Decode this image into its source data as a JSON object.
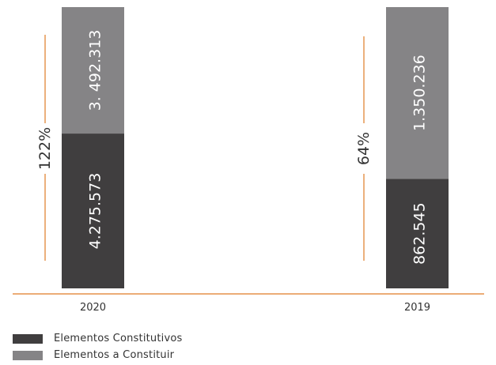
{
  "chart_data": {
    "type": "bar",
    "stacked": true,
    "orientation": "vertical",
    "categories": [
      "2020",
      "2019"
    ],
    "series": [
      {
        "name": "Elementos Constitutivos",
        "values": [
          4275573,
          862545
        ],
        "labels": [
          "4.275.573",
          "862.545"
        ],
        "color": "#403e3f"
      },
      {
        "name": "Elementos a Constituir",
        "values": [
          3492313,
          1350236
        ],
        "labels": [
          "3. 492.313",
          "1.350.236"
        ],
        "color": "#858486"
      }
    ],
    "ratio_labels": [
      "122%",
      "64%"
    ],
    "legend_position": "bottom-left",
    "grid": false,
    "colors": {
      "accent": "#e07b25",
      "text": "#333333"
    }
  }
}
